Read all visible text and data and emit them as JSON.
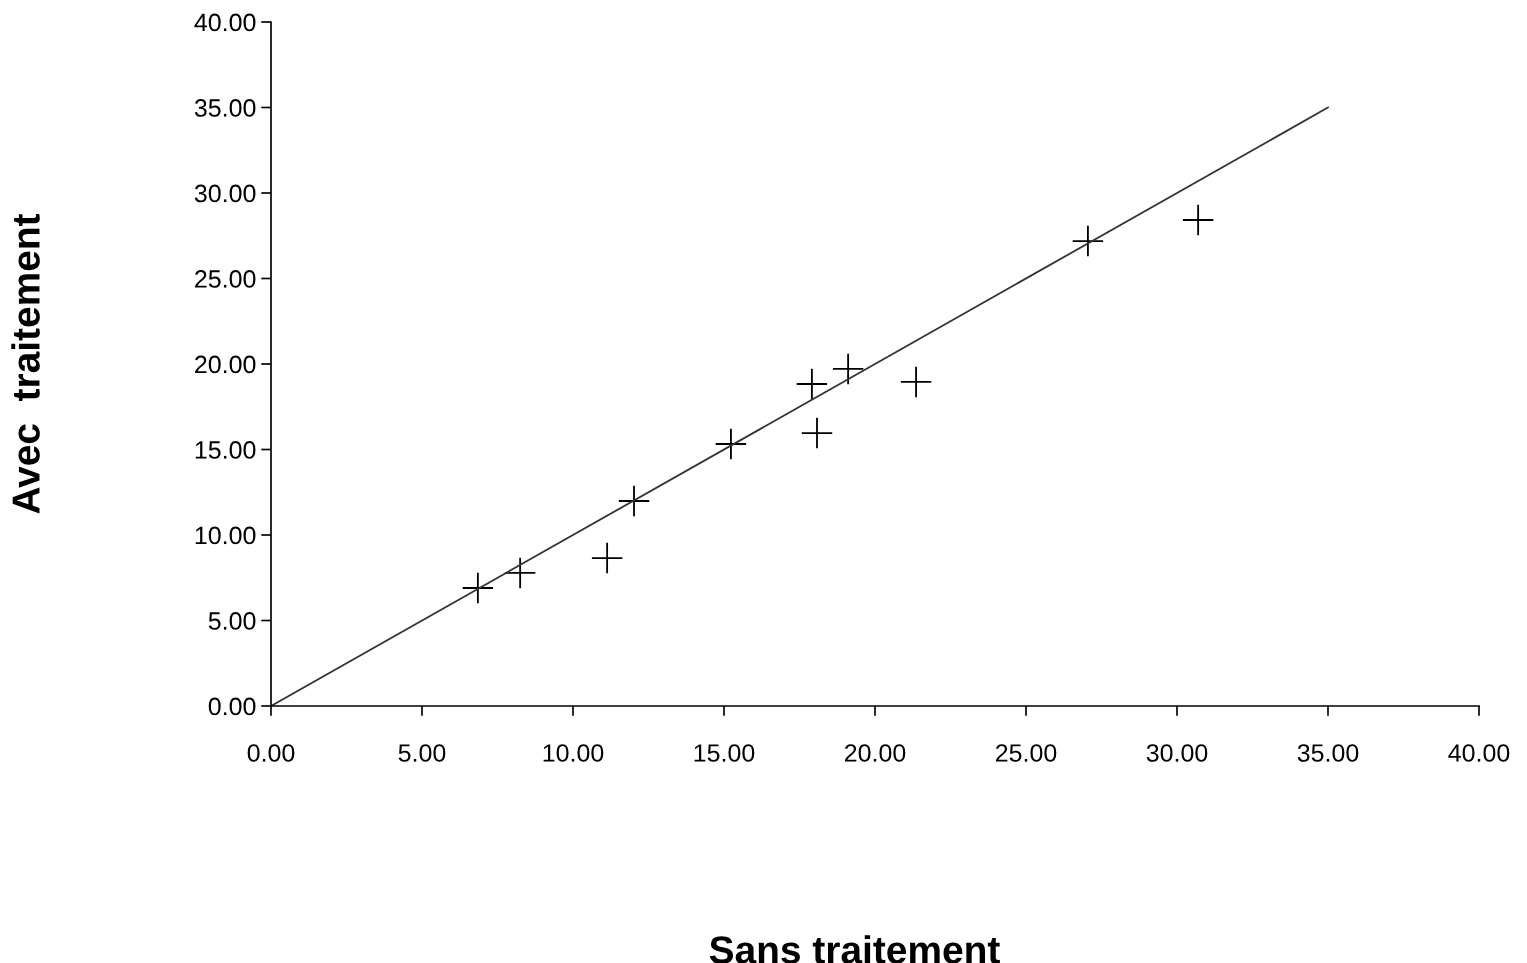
{
  "chart_data": {
    "type": "scatter",
    "xlabel": "Sans traitement",
    "ylabel": "Avec  traitement",
    "xlim": [
      0,
      40
    ],
    "ylim": [
      0,
      40
    ],
    "xticks": [
      {
        "value": 0,
        "label": "0.00"
      },
      {
        "value": 5,
        "label": "5.00"
      },
      {
        "value": 10,
        "label": "10.00"
      },
      {
        "value": 15,
        "label": "15.00"
      },
      {
        "value": 20,
        "label": "20.00"
      },
      {
        "value": 25,
        "label": "25.00"
      },
      {
        "value": 30,
        "label": "30.00"
      },
      {
        "value": 35,
        "label": "35.00"
      },
      {
        "value": 40,
        "label": "40.00"
      }
    ],
    "yticks": [
      {
        "value": 0,
        "label": "0.00"
      },
      {
        "value": 5,
        "label": "5.00"
      },
      {
        "value": 10,
        "label": "10.00"
      },
      {
        "value": 15,
        "label": "15.00"
      },
      {
        "value": 20,
        "label": "20.00"
      },
      {
        "value": 25,
        "label": "25.00"
      },
      {
        "value": 30,
        "label": "30.00"
      },
      {
        "value": 35,
        "label": "35.00"
      },
      {
        "value": 40,
        "label": "40.00"
      }
    ],
    "grid": false,
    "legend": false,
    "marker": "cross",
    "series": [
      {
        "type": "scatter",
        "color": "#000000",
        "x": [
          6.85,
          8.25,
          11.13,
          12.02,
          15.23,
          17.91,
          18.08,
          19.11,
          21.36,
          27.05,
          30.7
        ],
        "values": [
          6.9,
          7.78,
          8.65,
          11.99,
          15.32,
          18.83,
          15.96,
          19.71,
          18.95,
          27.19,
          28.42
        ]
      },
      {
        "type": "line",
        "color": "#333333",
        "line_style": "solid",
        "marker": "none",
        "x": [
          0,
          35
        ],
        "values": [
          0,
          35
        ]
      }
    ]
  }
}
